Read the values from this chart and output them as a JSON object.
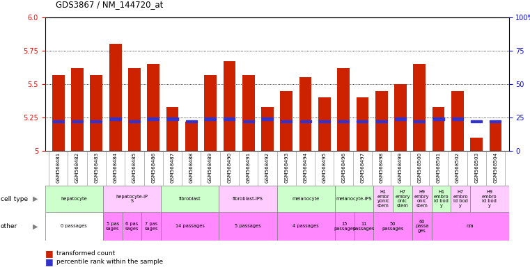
{
  "title": "GDS3867 / NM_144720_at",
  "samples": [
    "GSM568481",
    "GSM568482",
    "GSM568483",
    "GSM568484",
    "GSM568485",
    "GSM568486",
    "GSM568487",
    "GSM568488",
    "GSM568489",
    "GSM568490",
    "GSM568491",
    "GSM568492",
    "GSM568493",
    "GSM568494",
    "GSM568495",
    "GSM568496",
    "GSM568497",
    "GSM568498",
    "GSM568499",
    "GSM568500",
    "GSM568501",
    "GSM568502",
    "GSM568503",
    "GSM568504"
  ],
  "bar_values": [
    5.57,
    5.62,
    5.57,
    5.8,
    5.62,
    5.65,
    5.33,
    5.22,
    5.57,
    5.67,
    5.57,
    5.33,
    5.45,
    5.55,
    5.4,
    5.62,
    5.4,
    5.45,
    5.5,
    5.65,
    5.33,
    5.45,
    5.1,
    5.22
  ],
  "percentile_values": [
    5.22,
    5.22,
    5.22,
    5.24,
    5.22,
    5.24,
    5.24,
    5.22,
    5.24,
    5.24,
    5.22,
    5.24,
    5.22,
    5.22,
    5.22,
    5.22,
    5.22,
    5.22,
    5.24,
    5.22,
    5.24,
    5.24,
    5.22,
    5.22
  ],
  "ylim": [
    5.0,
    6.0
  ],
  "yticks": [
    5.0,
    5.25,
    5.5,
    5.75,
    6.0
  ],
  "y2ticks": [
    0,
    25,
    50,
    75,
    100
  ],
  "bar_color": "#cc2200",
  "percentile_color": "#3333cc",
  "cell_types": [
    {
      "label": "hepatocyte",
      "start": 0,
      "end": 3,
      "color": "#ccffcc"
    },
    {
      "label": "hepatocyte-iP\nS",
      "start": 3,
      "end": 6,
      "color": "#ffccff"
    },
    {
      "label": "fibroblast",
      "start": 6,
      "end": 9,
      "color": "#ccffcc"
    },
    {
      "label": "fibroblast-IPS",
      "start": 9,
      "end": 12,
      "color": "#ffccff"
    },
    {
      "label": "melanocyte",
      "start": 12,
      "end": 15,
      "color": "#ccffcc"
    },
    {
      "label": "melanocyte-IPS",
      "start": 15,
      "end": 17,
      "color": "#ccffcc"
    },
    {
      "label": "H1\nembr\nyonic\nstem",
      "start": 17,
      "end": 18,
      "color": "#ffccff"
    },
    {
      "label": "H7\nembry\nonic\nstem",
      "start": 18,
      "end": 19,
      "color": "#ccffcc"
    },
    {
      "label": "H9\nembry\nonic\nstem",
      "start": 19,
      "end": 20,
      "color": "#ffccff"
    },
    {
      "label": "H1\nembro\nid bod\ny",
      "start": 20,
      "end": 21,
      "color": "#ccffcc"
    },
    {
      "label": "H7\nembro\nid bod\ny",
      "start": 21,
      "end": 22,
      "color": "#ffccff"
    },
    {
      "label": "H9\nembro\nid bod\ny",
      "start": 22,
      "end": 24,
      "color": "#ffccff"
    }
  ],
  "other_labels": [
    {
      "label": "0 passages",
      "start": 0,
      "end": 3,
      "color": "#ffffff"
    },
    {
      "label": "5 pas\nsages",
      "start": 3,
      "end": 4,
      "color": "#ff88ff"
    },
    {
      "label": "6 pas\nsages",
      "start": 4,
      "end": 5,
      "color": "#ff88ff"
    },
    {
      "label": "7 pas\nsages",
      "start": 5,
      "end": 6,
      "color": "#ff88ff"
    },
    {
      "label": "14 passages",
      "start": 6,
      "end": 9,
      "color": "#ff88ff"
    },
    {
      "label": "5 passages",
      "start": 9,
      "end": 12,
      "color": "#ff88ff"
    },
    {
      "label": "4 passages",
      "start": 12,
      "end": 15,
      "color": "#ff88ff"
    },
    {
      "label": "15\npassages",
      "start": 15,
      "end": 16,
      "color": "#ff88ff"
    },
    {
      "label": "11\npassages",
      "start": 16,
      "end": 17,
      "color": "#ff88ff"
    },
    {
      "label": "50\npassages",
      "start": 17,
      "end": 19,
      "color": "#ff88ff"
    },
    {
      "label": "60\npassa\nges",
      "start": 19,
      "end": 20,
      "color": "#ff88ff"
    },
    {
      "label": "n/a",
      "start": 20,
      "end": 24,
      "color": "#ff88ff"
    }
  ]
}
